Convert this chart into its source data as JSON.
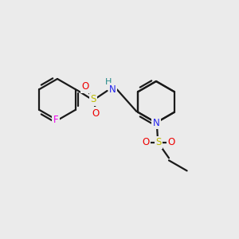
{
  "background_color": "#ebebeb",
  "bond_color": "#1a1a1a",
  "atom_colors": {
    "F": "#ee00ee",
    "S": "#bbbb00",
    "O": "#ee0000",
    "N": "#2222ee",
    "H": "#228888",
    "C": "#1a1a1a"
  },
  "figsize": [
    3.0,
    3.0
  ],
  "dpi": 100,
  "bond_lw": 1.6,
  "font_size": 8.5
}
